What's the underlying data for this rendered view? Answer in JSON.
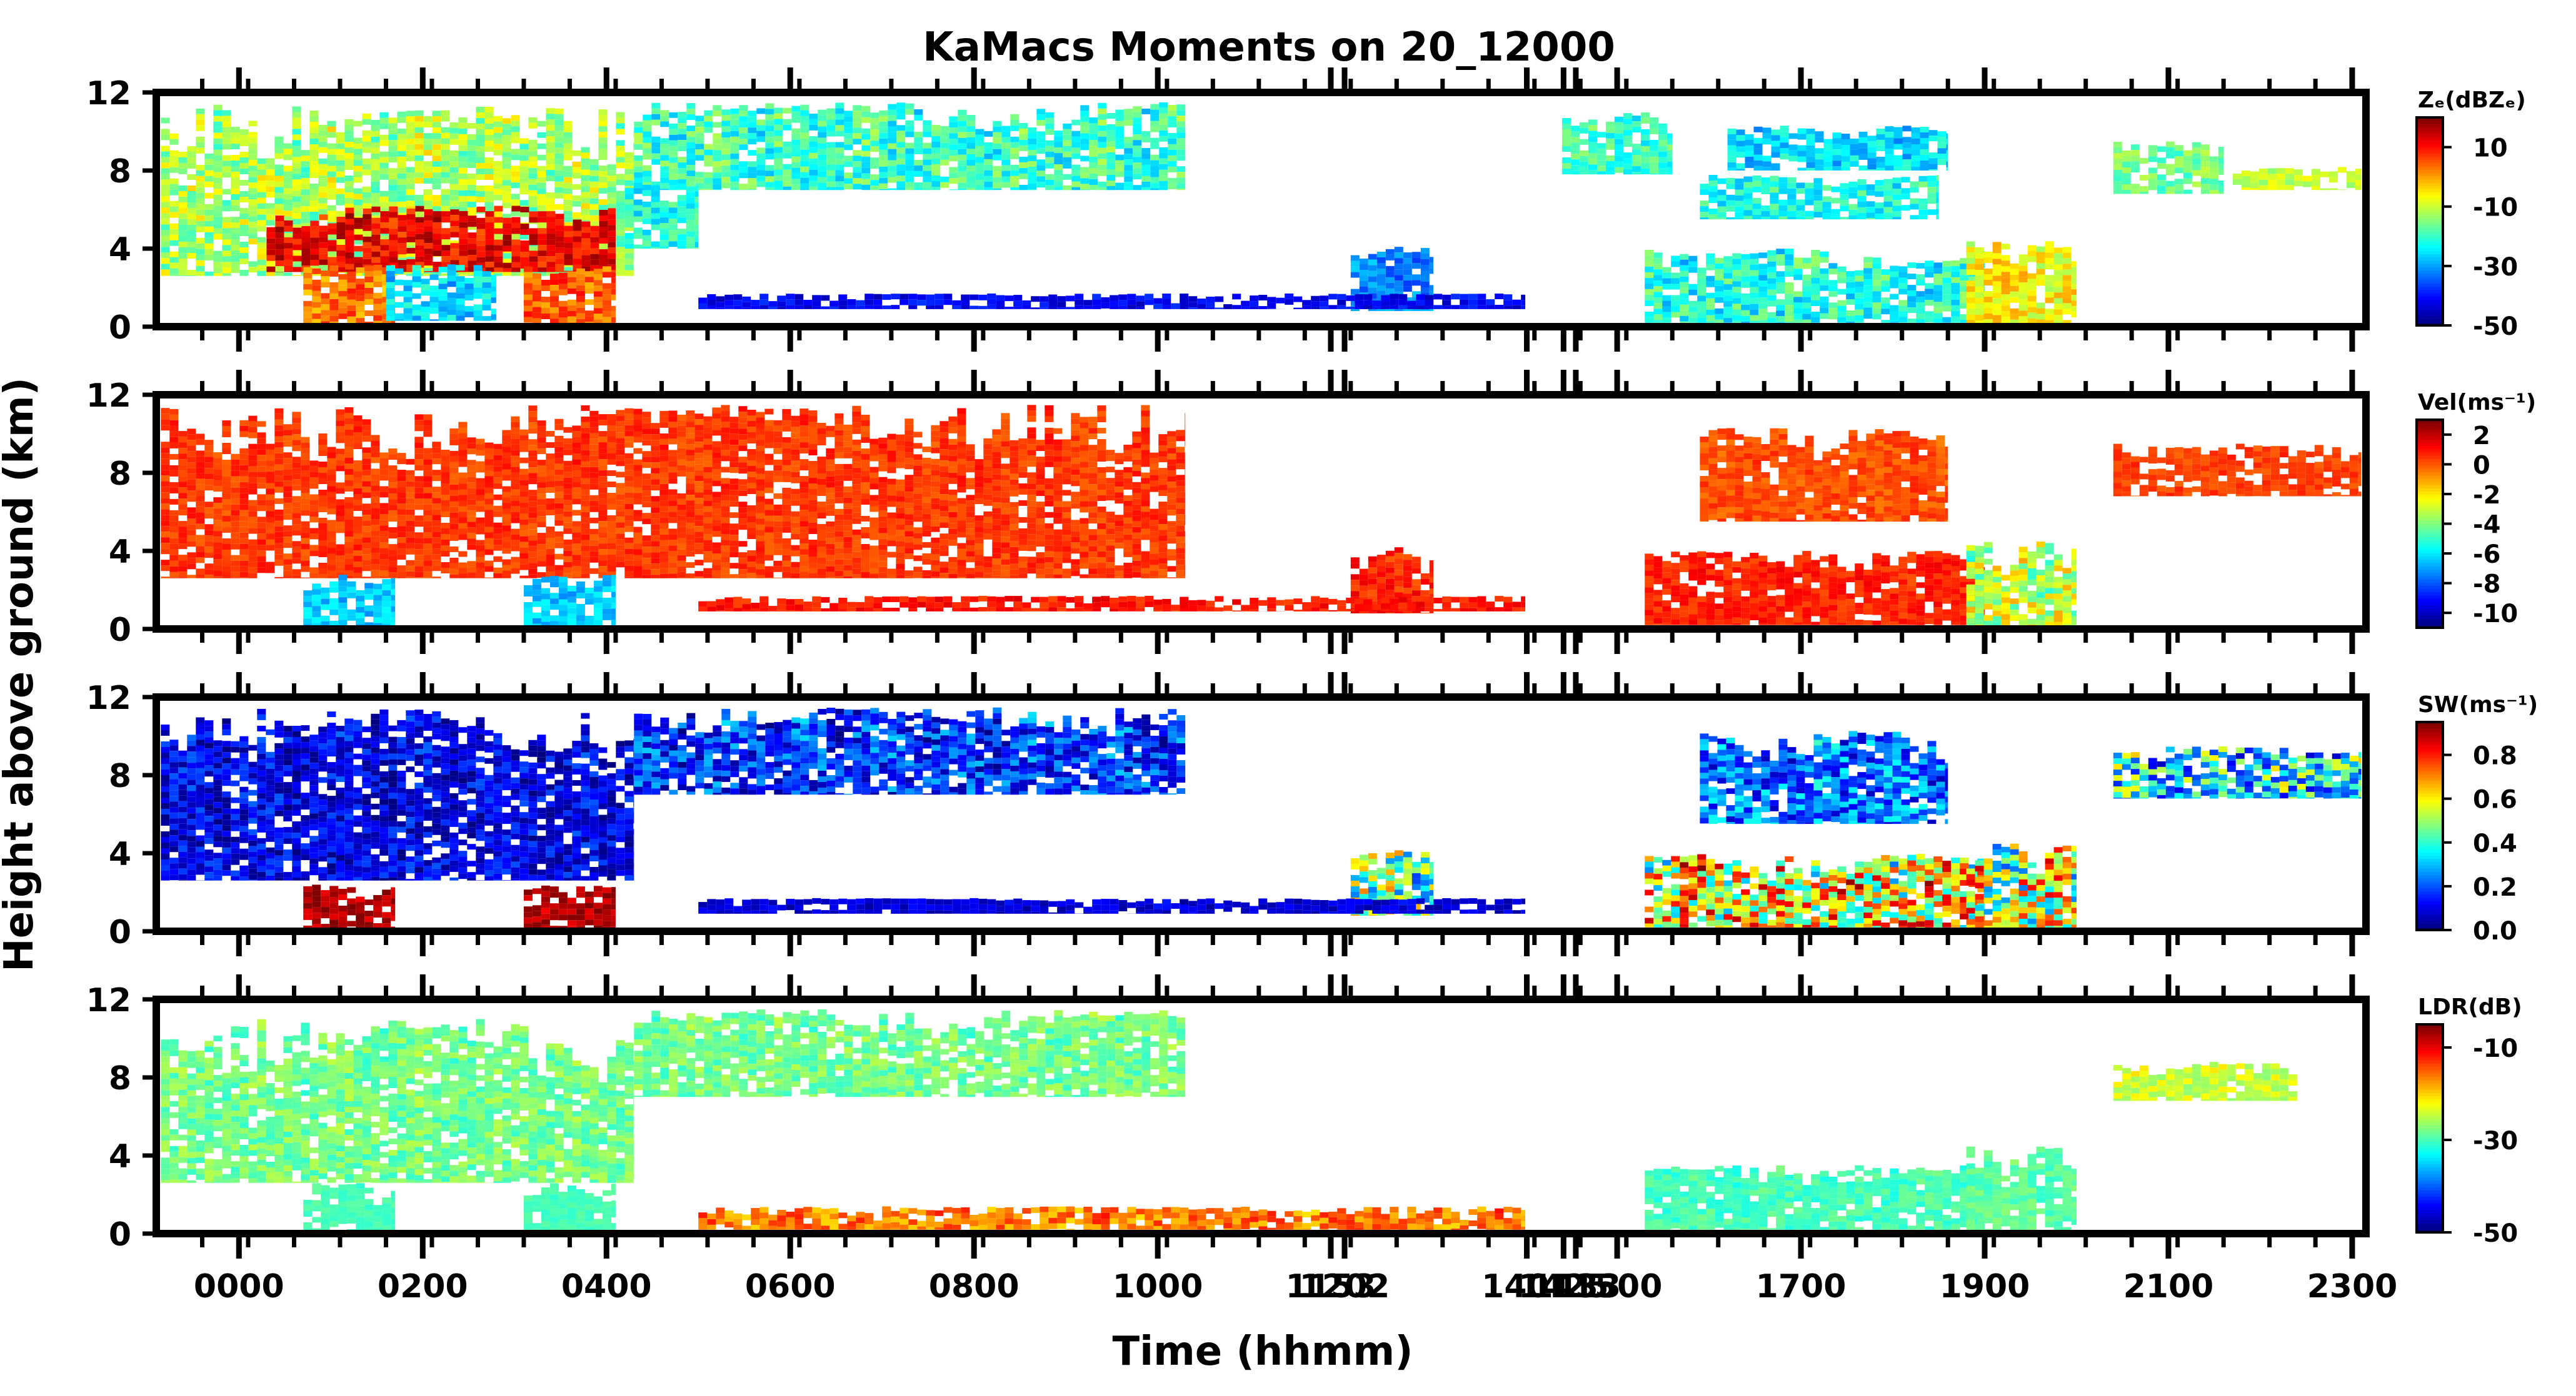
{
  "chart_data": {
    "type": "heatmap",
    "title": "KaMacs Moments on 20_12000",
    "xlabel": "Time (hhmm)",
    "ylabel": "Height above ground (km)",
    "x_ticks": [
      "0000",
      "0200",
      "0400",
      "0600",
      "0800",
      "1000",
      "1153",
      "1202",
      "1401",
      "1425",
      "1433",
      "1500",
      "1700",
      "1900",
      "2100",
      "2300"
    ],
    "y_ticks": [
      0,
      4,
      8,
      12
    ],
    "ylim": [
      0,
      12
    ],
    "x_range_hours": [
      -0.9,
      23.15
    ],
    "panels": [
      {
        "key": "ze",
        "label": "Zₑ(dBZₑ)",
        "colorbar_ticks": [
          10,
          -10,
          -30,
          -50
        ],
        "clim": [
          -50,
          20
        ],
        "default_value": -18,
        "regions": [
          {
            "t0": -0.85,
            "t1": 4.3,
            "h0": 2.6,
            "h1": 11.4,
            "value": -12,
            "rough": 8
          },
          {
            "t0": 0.3,
            "t1": 4.1,
            "h0": 2.8,
            "h1": 6.2,
            "value": 12,
            "rough": 6
          },
          {
            "t0": 4.3,
            "t1": 10.3,
            "h0": 7.0,
            "h1": 11.5,
            "value": -20,
            "rough": 8
          },
          {
            "t0": 4.2,
            "t1": 5.0,
            "h0": 4.0,
            "h1": 7.5,
            "value": -22,
            "rough": 6
          },
          {
            "t0": 0.7,
            "t1": 1.7,
            "h0": 0,
            "h1": 3.2,
            "value": 3,
            "rough": 6
          },
          {
            "t0": 3.1,
            "t1": 4.1,
            "h0": 0,
            "h1": 3.2,
            "value": 5,
            "rough": 6
          },
          {
            "t0": 1.6,
            "t1": 2.8,
            "h0": 0.3,
            "h1": 3.2,
            "value": -26,
            "rough": 6
          },
          {
            "t0": 12.1,
            "t1": 13.0,
            "h0": 0.8,
            "h1": 4.2,
            "value": -32,
            "rough": 5
          },
          {
            "t0": 15.3,
            "t1": 19.0,
            "h0": 0.2,
            "h1": 4.0,
            "value": -22,
            "rough": 8
          },
          {
            "t0": 15.9,
            "t1": 18.5,
            "h0": 5.5,
            "h1": 7.8,
            "value": -22,
            "rough": 6
          },
          {
            "t0": 16.2,
            "t1": 18.6,
            "h0": 8.0,
            "h1": 10.3,
            "value": -26,
            "rough": 6
          },
          {
            "t0": 18.8,
            "t1": 20.0,
            "h0": 0,
            "h1": 4.5,
            "value": -6,
            "rough": 6
          },
          {
            "t0": 14.4,
            "t1": 15.6,
            "h0": 7.8,
            "h1": 11.0,
            "value": -20,
            "rough": 6
          },
          {
            "t0": 20.4,
            "t1": 21.6,
            "h0": 6.8,
            "h1": 9.5,
            "value": -16,
            "rough": 5
          },
          {
            "t0": 21.7,
            "t1": 23.1,
            "h0": 7.0,
            "h1": 8.2,
            "value": -10,
            "rough": 4
          },
          {
            "t0": 5.0,
            "t1": 14.0,
            "h0": 0.9,
            "h1": 1.7,
            "value": -42,
            "rough": 4
          }
        ]
      },
      {
        "key": "vel",
        "label": "Vel(ms⁻¹)",
        "colorbar_ticks": [
          2,
          0,
          -2,
          -4,
          -6,
          -8,
          -10
        ],
        "clim": [
          -11,
          3
        ],
        "default_value": 0,
        "regions": [
          {
            "t0": -0.85,
            "t1": 10.3,
            "h0": 2.6,
            "h1": 11.5,
            "value": 0.5,
            "rough": 0.6
          },
          {
            "t0": 0.7,
            "t1": 1.7,
            "h0": 0,
            "h1": 2.8,
            "value": -6.5,
            "rough": 0.8
          },
          {
            "t0": 3.1,
            "t1": 4.1,
            "h0": 0,
            "h1": 2.8,
            "value": -6.5,
            "rough": 0.8
          },
          {
            "t0": 15.3,
            "t1": 19.0,
            "h0": 0.2,
            "h1": 4.0,
            "value": 0.8,
            "rough": 0.6
          },
          {
            "t0": 15.9,
            "t1": 18.6,
            "h0": 5.5,
            "h1": 10.3,
            "value": 0.2,
            "rough": 0.6
          },
          {
            "t0": 18.8,
            "t1": 20.0,
            "h0": 0,
            "h1": 4.5,
            "value": -3,
            "rough": 2
          },
          {
            "t0": 20.4,
            "t1": 23.1,
            "h0": 6.8,
            "h1": 9.5,
            "value": 0.4,
            "rough": 0.5
          },
          {
            "t0": 12.1,
            "t1": 13.0,
            "h0": 0.8,
            "h1": 4.2,
            "value": 0.8,
            "rough": 0.8
          },
          {
            "t0": 5.0,
            "t1": 14.0,
            "h0": 0.9,
            "h1": 1.7,
            "value": 1.0,
            "rough": 0.6
          }
        ]
      },
      {
        "key": "sw",
        "label": "SW(ms⁻¹)",
        "colorbar_ticks": [
          0.8,
          0.6,
          0.4,
          0.2,
          0.0
        ],
        "clim": [
          0.0,
          0.95
        ],
        "default_value": 0.1,
        "regions": [
          {
            "t0": -0.85,
            "t1": 4.3,
            "h0": 2.6,
            "h1": 11.4,
            "value": 0.1,
            "rough": 0.1
          },
          {
            "t0": 4.3,
            "t1": 10.3,
            "h0": 7.0,
            "h1": 11.5,
            "value": 0.16,
            "rough": 0.14
          },
          {
            "t0": 0.7,
            "t1": 1.7,
            "h0": 0,
            "h1": 2.4,
            "value": 0.9,
            "rough": 0.06
          },
          {
            "t0": 3.1,
            "t1": 4.1,
            "h0": 0,
            "h1": 2.4,
            "value": 0.9,
            "rough": 0.06
          },
          {
            "t0": 15.3,
            "t1": 19.0,
            "h0": 0.2,
            "h1": 4.0,
            "value": 0.6,
            "rough": 0.3
          },
          {
            "t0": 15.9,
            "t1": 18.6,
            "h0": 5.5,
            "h1": 10.3,
            "value": 0.22,
            "rough": 0.16
          },
          {
            "t0": 12.1,
            "t1": 13.0,
            "h0": 0.8,
            "h1": 4.2,
            "value": 0.45,
            "rough": 0.25
          },
          {
            "t0": 20.4,
            "t1": 23.1,
            "h0": 6.8,
            "h1": 9.5,
            "value": 0.35,
            "rough": 0.25
          },
          {
            "t0": 18.8,
            "t1": 20.0,
            "h0": 0,
            "h1": 4.5,
            "value": 0.55,
            "rough": 0.3
          },
          {
            "t0": 5.0,
            "t1": 14.0,
            "h0": 0.9,
            "h1": 1.7,
            "value": 0.08,
            "rough": 0.05
          }
        ]
      },
      {
        "key": "ldr",
        "label": "LDR(dB)",
        "colorbar_ticks": [
          -10,
          -30,
          -50
        ],
        "clim": [
          -50,
          -5
        ],
        "default_value": -28,
        "regions": [
          {
            "t0": -0.85,
            "t1": 4.3,
            "h0": 2.6,
            "h1": 11.0,
            "value": -28,
            "rough": 3
          },
          {
            "t0": 0.7,
            "t1": 1.7,
            "h0": 0,
            "h1": 2.6,
            "value": -30,
            "rough": 1
          },
          {
            "t0": 3.1,
            "t1": 4.1,
            "h0": 0,
            "h1": 2.6,
            "value": -30,
            "rough": 1
          },
          {
            "t0": 4.3,
            "t1": 10.3,
            "h0": 7.0,
            "h1": 11.5,
            "value": -28,
            "rough": 3
          },
          {
            "t0": 15.3,
            "t1": 19.0,
            "h0": 0.2,
            "h1": 3.5,
            "value": -30,
            "rough": 2
          },
          {
            "t0": 18.8,
            "t1": 20.0,
            "h0": 0,
            "h1": 4.5,
            "value": -29,
            "rough": 2
          },
          {
            "t0": 20.4,
            "t1": 22.4,
            "h0": 6.8,
            "h1": 8.8,
            "value": -24,
            "rough": 3
          },
          {
            "t0": 5.0,
            "t1": 14.0,
            "h0": 0.2,
            "h1": 1.4,
            "value": -16,
            "rough": 4
          }
        ]
      }
    ]
  }
}
